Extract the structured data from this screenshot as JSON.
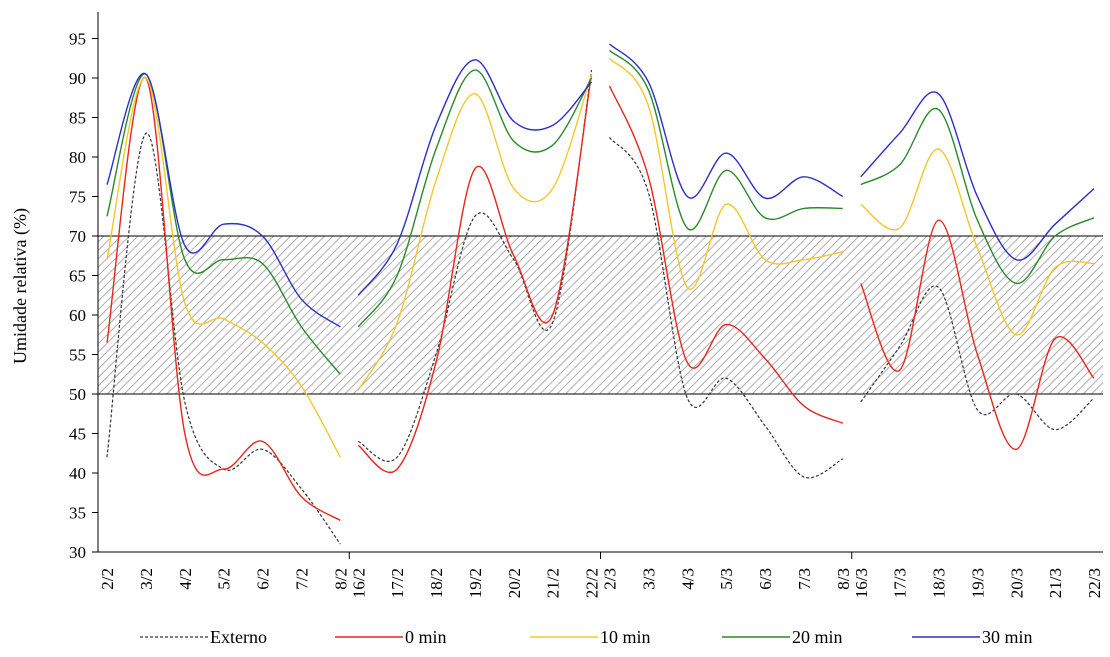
{
  "chart_data": {
    "type": "line",
    "ylabel": "Umidade relativa (%)",
    "ylim": [
      30,
      95
    ],
    "yticks": [
      30,
      35,
      40,
      45,
      50,
      55,
      60,
      65,
      70,
      75,
      80,
      85,
      90,
      95
    ],
    "shaded_band": [
      50,
      70
    ],
    "groups": [
      {
        "categories": [
          "2/2",
          "3/2",
          "4/2",
          "5/2",
          "6/2",
          "7/2",
          "8/2"
        ],
        "series": [
          {
            "name": "Externo",
            "values": [
              42,
              83,
              49,
              40.5,
              43,
              38,
              31
            ]
          },
          {
            "name": "0 min",
            "values": [
              56.5,
              90,
              45,
              40.5,
              44,
              37,
              34
            ]
          },
          {
            "name": "10 min",
            "values": [
              67,
              90,
              61.5,
              59.5,
              56.5,
              51,
              42
            ]
          },
          {
            "name": "20 min",
            "values": [
              72.5,
              90.5,
              67,
              67,
              66.5,
              58.5,
              52.5
            ]
          },
          {
            "name": "30 min",
            "values": [
              76.5,
              90.5,
              68.8,
              71.5,
              70,
              62,
              58.5
            ]
          }
        ]
      },
      {
        "categories": [
          "16/2",
          "17/2",
          "18/2",
          "19/2",
          "20/2",
          "21/2",
          "22/2"
        ],
        "series": [
          {
            "name": "Externo",
            "values": [
              44,
              42,
              55,
              72.5,
              67,
              59,
              91
            ]
          },
          {
            "name": "0 min",
            "values": [
              43.5,
              40.5,
              54,
              78.5,
              67.5,
              60,
              90.5
            ]
          },
          {
            "name": "10 min",
            "values": [
              50.5,
              59,
              77,
              88,
              76,
              76,
              90.5
            ]
          },
          {
            "name": "20 min",
            "values": [
              58.5,
              65,
              81,
              91,
              82,
              81.5,
              90
            ]
          },
          {
            "name": "30 min",
            "values": [
              62.5,
              69,
              84,
              92.3,
              84.5,
              84,
              89.5
            ]
          }
        ]
      },
      {
        "categories": [
          "2/3",
          "3/3",
          "4/3",
          "5/3",
          "6/3",
          "7/3",
          "8/3"
        ],
        "series": [
          {
            "name": "Externo",
            "values": [
              82.5,
              75.5,
              49.5,
              52,
              46,
              39.5,
              41.8
            ]
          },
          {
            "name": "0 min",
            "values": [
              89,
              77.5,
              54,
              58.8,
              54.5,
              48.5,
              46.3
            ]
          },
          {
            "name": "10 min",
            "values": [
              92.5,
              86.5,
              63.5,
              74,
              67,
              67,
              68
            ]
          },
          {
            "name": "20 min",
            "values": [
              93.5,
              88.5,
              71,
              78.3,
              72.3,
              73.5,
              73.5
            ]
          },
          {
            "name": "30 min",
            "values": [
              94.3,
              89.5,
              75,
              80.5,
              74.8,
              77.5,
              75
            ]
          }
        ]
      },
      {
        "categories": [
          "16/3",
          "17/3",
          "18/3",
          "19/3",
          "20/3",
          "21/3",
          "22/3"
        ],
        "series": [
          {
            "name": "Externo",
            "values": [
              49,
              56,
              63.5,
              48,
              50,
              45.5,
              49.5
            ]
          },
          {
            "name": "0 min",
            "values": [
              64,
              53,
              72,
              55,
              43,
              57,
              52
            ]
          },
          {
            "name": "10 min",
            "values": [
              74,
              71,
              81,
              68.5,
              57.5,
              66,
              66.5
            ]
          },
          {
            "name": "20 min",
            "values": [
              76.5,
              79,
              86,
              72,
              64,
              70,
              72.3
            ]
          },
          {
            "name": "30 min",
            "values": [
              77.5,
              83,
              88,
              75,
              67,
              71.5,
              76
            ]
          }
        ]
      }
    ],
    "legend": {
      "position": "bottom",
      "items": [
        {
          "name": "Externo",
          "color": "#333333",
          "dash": true
        },
        {
          "name": "0 min",
          "color": "#e8261c",
          "dash": false
        },
        {
          "name": "10 min",
          "color": "#f5c728",
          "dash": false
        },
        {
          "name": "20 min",
          "color": "#2a8a2a",
          "dash": false
        },
        {
          "name": "30 min",
          "color": "#2b2fc8",
          "dash": false
        }
      ]
    }
  }
}
